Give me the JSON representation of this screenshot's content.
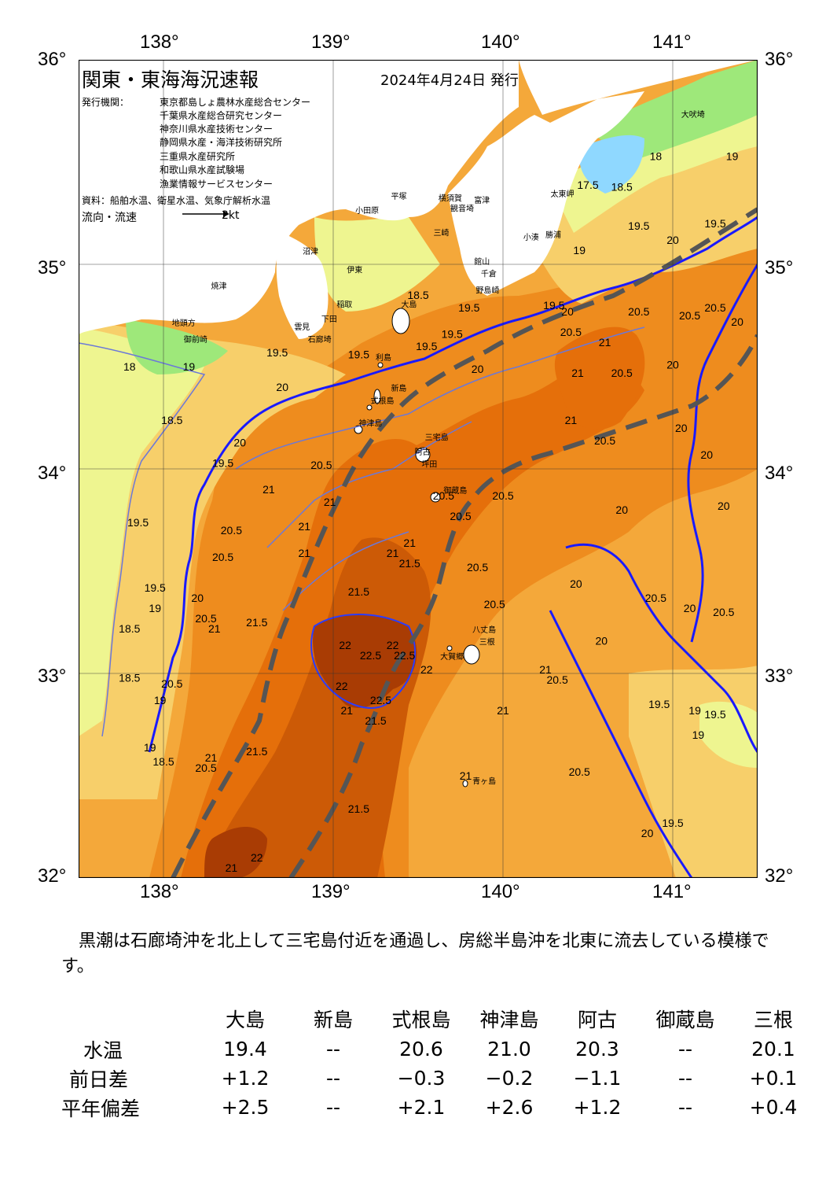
{
  "map": {
    "title": "関東・東海海況速報",
    "date": "2024年4月24日 発行",
    "publisher_label": "発行機関：",
    "publishers": [
      "東京都島しょ農林水産総合センター",
      "千葉県水産総合研究センター",
      "神奈川県水産技術センター",
      "静岡県水産・海洋技術研究所",
      "三重県水産研究所",
      "和歌山県水産試験場",
      "漁業情報サービスセンター"
    ],
    "source": "資料：船舶水温、衛星水温、気象庁解析水温",
    "flow_label": "流向・流速",
    "flow_unit": "2kt",
    "lon_ticks": [
      "138°",
      "139°",
      "140°",
      "141°"
    ],
    "lat_ticks": [
      "36°",
      "35°",
      "34°",
      "33°",
      "32°"
    ],
    "lon_range": [
      137.5,
      141.5
    ],
    "lat_range": [
      32,
      36
    ],
    "colors": {
      "t17": "#8fd8ff",
      "t18": "#9ee87a",
      "t19": "#eef590",
      "t19_5": "#f7cf6a",
      "t20": "#f4a83a",
      "t20_5": "#ee8c1e",
      "t21": "#e56f0a",
      "t21_5": "#cc5a06",
      "t22": "#a93c04",
      "land": "#ffffff",
      "isotherm_major": "#1a1aff",
      "isotherm_minor": "#6b78d8",
      "kuroshio_axis": "#555555"
    },
    "place_labels": [
      {
        "text": "大吠埼",
        "lon": 141.05,
        "lat": 35.72
      },
      {
        "text": "太東岬",
        "lon": 140.28,
        "lat": 35.33
      },
      {
        "text": "勝浦",
        "lon": 140.25,
        "lat": 35.13
      },
      {
        "text": "小湊",
        "lon": 140.12,
        "lat": 35.12
      },
      {
        "text": "富津",
        "lon": 139.83,
        "lat": 35.3
      },
      {
        "text": "館山",
        "lon": 139.83,
        "lat": 35.0
      },
      {
        "text": "千倉",
        "lon": 139.87,
        "lat": 34.94
      },
      {
        "text": "野島崎",
        "lon": 139.84,
        "lat": 34.86
      },
      {
        "text": "横須賀",
        "lon": 139.62,
        "lat": 35.31
      },
      {
        "text": "観音埼",
        "lon": 139.69,
        "lat": 35.26
      },
      {
        "text": "三崎",
        "lon": 139.59,
        "lat": 35.14
      },
      {
        "text": "平塚",
        "lon": 139.34,
        "lat": 35.32
      },
      {
        "text": "小田原",
        "lon": 139.13,
        "lat": 35.25
      },
      {
        "text": "大島",
        "lon": 139.4,
        "lat": 34.79
      },
      {
        "text": "伊東",
        "lon": 139.08,
        "lat": 34.96
      },
      {
        "text": "稲取",
        "lon": 139.02,
        "lat": 34.79
      },
      {
        "text": "下田",
        "lon": 138.93,
        "lat": 34.72
      },
      {
        "text": "石廊埼",
        "lon": 138.85,
        "lat": 34.62
      },
      {
        "text": "雲見",
        "lon": 138.77,
        "lat": 34.68
      },
      {
        "text": "沼津",
        "lon": 138.82,
        "lat": 35.05
      },
      {
        "text": "焼津",
        "lon": 138.28,
        "lat": 34.88
      },
      {
        "text": "御前崎",
        "lon": 138.12,
        "lat": 34.62
      },
      {
        "text": "地頭方",
        "lon": 138.05,
        "lat": 34.7
      },
      {
        "text": "利島",
        "lon": 139.25,
        "lat": 34.53
      },
      {
        "text": "新島",
        "lon": 139.34,
        "lat": 34.38
      },
      {
        "text": "式根島",
        "lon": 139.22,
        "lat": 34.32
      },
      {
        "text": "神津島",
        "lon": 139.15,
        "lat": 34.21
      },
      {
        "text": "三宅島",
        "lon": 139.54,
        "lat": 34.14
      },
      {
        "text": "阿古",
        "lon": 139.48,
        "lat": 34.07
      },
      {
        "text": "坪田",
        "lon": 139.52,
        "lat": 34.01
      },
      {
        "text": "御蔵島",
        "lon": 139.65,
        "lat": 33.88
      },
      {
        "text": "八丈島",
        "lon": 139.82,
        "lat": 33.2
      },
      {
        "text": "三根",
        "lon": 139.86,
        "lat": 33.14
      },
      {
        "text": "大賀郷",
        "lon": 139.63,
        "lat": 33.07
      },
      {
        "text": "青ヶ島",
        "lon": 139.82,
        "lat": 32.46
      }
    ],
    "contour_labels": [
      {
        "text": "18",
        "lon": 140.9,
        "lat": 35.51
      },
      {
        "text": "18.5",
        "lon": 140.7,
        "lat": 35.36
      },
      {
        "text": "19",
        "lon": 141.35,
        "lat": 35.51
      },
      {
        "text": "17.5",
        "lon": 140.5,
        "lat": 35.37
      },
      {
        "text": "19.5",
        "lon": 140.8,
        "lat": 35.17
      },
      {
        "text": "19",
        "lon": 140.45,
        "lat": 35.05
      },
      {
        "text": "20",
        "lon": 141.0,
        "lat": 35.1
      },
      {
        "text": "19.5",
        "lon": 141.25,
        "lat": 35.18
      },
      {
        "text": "20.5",
        "lon": 140.8,
        "lat": 34.75
      },
      {
        "text": "20.5",
        "lon": 141.1,
        "lat": 34.73
      },
      {
        "text": "20",
        "lon": 141.38,
        "lat": 34.7
      },
      {
        "text": "20.5",
        "lon": 141.25,
        "lat": 34.77
      },
      {
        "text": "20",
        "lon": 141.0,
        "lat": 34.49
      },
      {
        "text": "19.5",
        "lon": 140.3,
        "lat": 34.78
      },
      {
        "text": "20",
        "lon": 140.38,
        "lat": 34.75
      },
      {
        "text": "20.5",
        "lon": 140.4,
        "lat": 34.65
      },
      {
        "text": "21",
        "lon": 140.6,
        "lat": 34.6
      },
      {
        "text": "21",
        "lon": 140.44,
        "lat": 34.45
      },
      {
        "text": "20.5",
        "lon": 140.7,
        "lat": 34.45
      },
      {
        "text": "21",
        "lon": 140.4,
        "lat": 34.22
      },
      {
        "text": "20.5",
        "lon": 140.6,
        "lat": 34.12
      },
      {
        "text": "20",
        "lon": 141.05,
        "lat": 34.18
      },
      {
        "text": "20",
        "lon": 141.2,
        "lat": 34.05
      },
      {
        "text": "20",
        "lon": 141.3,
        "lat": 33.8
      },
      {
        "text": "20",
        "lon": 140.7,
        "lat": 33.78
      },
      {
        "text": "19.5",
        "lon": 139.8,
        "lat": 34.77
      },
      {
        "text": "19.5",
        "lon": 139.55,
        "lat": 34.58
      },
      {
        "text": "19.5",
        "lon": 139.7,
        "lat": 34.64
      },
      {
        "text": "20",
        "lon": 139.85,
        "lat": 34.47
      },
      {
        "text": "19.5",
        "lon": 139.15,
        "lat": 34.54
      },
      {
        "text": "20",
        "lon": 138.7,
        "lat": 34.38
      },
      {
        "text": "19.5",
        "lon": 138.67,
        "lat": 34.55
      },
      {
        "text": "18.5",
        "lon": 139.5,
        "lat": 34.83
      },
      {
        "text": "19",
        "lon": 138.15,
        "lat": 34.48
      },
      {
        "text": "18.5",
        "lon": 138.05,
        "lat": 34.22
      },
      {
        "text": "20",
        "lon": 138.45,
        "lat": 34.11
      },
      {
        "text": "19.5",
        "lon": 138.35,
        "lat": 34.01
      },
      {
        "text": "18",
        "lon": 137.8,
        "lat": 34.48
      },
      {
        "text": "19.5",
        "lon": 137.85,
        "lat": 33.72
      },
      {
        "text": "20.5",
        "lon": 138.93,
        "lat": 34.0
      },
      {
        "text": "21",
        "lon": 138.62,
        "lat": 33.88
      },
      {
        "text": "21",
        "lon": 138.98,
        "lat": 33.82
      },
      {
        "text": "21",
        "lon": 138.83,
        "lat": 33.7
      },
      {
        "text": "21",
        "lon": 138.83,
        "lat": 33.57
      },
      {
        "text": "20.5",
        "lon": 138.4,
        "lat": 33.68
      },
      {
        "text": "20.5",
        "lon": 138.35,
        "lat": 33.55
      },
      {
        "text": "20",
        "lon": 138.2,
        "lat": 33.35
      },
      {
        "text": "20.5",
        "lon": 138.25,
        "lat": 33.25
      },
      {
        "text": "21",
        "lon": 138.3,
        "lat": 33.2
      },
      {
        "text": "19.5",
        "lon": 137.95,
        "lat": 33.4
      },
      {
        "text": "19",
        "lon": 137.95,
        "lat": 33.3
      },
      {
        "text": "18.5",
        "lon": 137.8,
        "lat": 33.2
      },
      {
        "text": "18.5",
        "lon": 137.8,
        "lat": 32.96
      },
      {
        "text": "20.5",
        "lon": 138.05,
        "lat": 32.93
      },
      {
        "text": "19",
        "lon": 137.98,
        "lat": 32.85
      },
      {
        "text": "19",
        "lon": 137.92,
        "lat": 32.62
      },
      {
        "text": "18.5",
        "lon": 138.0,
        "lat": 32.55
      },
      {
        "text": "21",
        "lon": 138.28,
        "lat": 32.57
      },
      {
        "text": "20.5",
        "lon": 138.25,
        "lat": 32.52
      },
      {
        "text": "21.5",
        "lon": 138.55,
        "lat": 32.6
      },
      {
        "text": "21.5",
        "lon": 138.55,
        "lat": 33.23
      },
      {
        "text": "21.5",
        "lon": 139.15,
        "lat": 33.38
      },
      {
        "text": "21.5",
        "lon": 139.45,
        "lat": 33.52
      },
      {
        "text": "21",
        "lon": 139.45,
        "lat": 33.62
      },
      {
        "text": "21",
        "lon": 139.35,
        "lat": 33.57
      },
      {
        "text": "20.5",
        "lon": 139.75,
        "lat": 33.75
      },
      {
        "text": "20.5",
        "lon": 139.65,
        "lat": 33.85
      },
      {
        "text": "20.5",
        "lon": 140.0,
        "lat": 33.85
      },
      {
        "text": "20.5",
        "lon": 139.85,
        "lat": 33.5
      },
      {
        "text": "20.5",
        "lon": 139.95,
        "lat": 33.32
      },
      {
        "text": "20.5",
        "lon": 140.9,
        "lat": 33.35
      },
      {
        "text": "20.5",
        "lon": 141.3,
        "lat": 33.28
      },
      {
        "text": "20",
        "lon": 141.1,
        "lat": 33.3
      },
      {
        "text": "20",
        "lon": 140.43,
        "lat": 33.42
      },
      {
        "text": "20",
        "lon": 140.58,
        "lat": 33.14
      },
      {
        "text": "22",
        "lon": 139.07,
        "lat": 33.12
      },
      {
        "text": "22.5",
        "lon": 139.22,
        "lat": 33.07
      },
      {
        "text": "22.5",
        "lon": 139.42,
        "lat": 33.07
      },
      {
        "text": "22",
        "lon": 139.35,
        "lat": 33.12
      },
      {
        "text": "22",
        "lon": 139.55,
        "lat": 33.0
      },
      {
        "text": "22",
        "lon": 139.05,
        "lat": 32.92
      },
      {
        "text": "22.5",
        "lon": 139.28,
        "lat": 32.85
      },
      {
        "text": "21.5",
        "lon": 139.25,
        "lat": 32.75
      },
      {
        "text": "21",
        "lon": 139.08,
        "lat": 32.8
      },
      {
        "text": "21",
        "lon": 140.25,
        "lat": 33.0
      },
      {
        "text": "20.5",
        "lon": 140.32,
        "lat": 32.95
      },
      {
        "text": "21",
        "lon": 140.0,
        "lat": 32.8
      },
      {
        "text": "21",
        "lon": 139.78,
        "lat": 32.48
      },
      {
        "text": "20.5",
        "lon": 140.45,
        "lat": 32.5
      },
      {
        "text": "20",
        "lon": 140.85,
        "lat": 32.2
      },
      {
        "text": "19.5",
        "lon": 140.92,
        "lat": 32.83
      },
      {
        "text": "19",
        "lon": 141.13,
        "lat": 32.8
      },
      {
        "text": "19",
        "lon": 141.15,
        "lat": 32.68
      },
      {
        "text": "19.5",
        "lon": 141.25,
        "lat": 32.78
      },
      {
        "text": "19.5",
        "lon": 141.0,
        "lat": 32.25
      },
      {
        "text": "21.5",
        "lon": 139.15,
        "lat": 32.32
      },
      {
        "text": "22",
        "lon": 138.55,
        "lat": 32.08
      },
      {
        "text": "21",
        "lon": 138.4,
        "lat": 32.03
      }
    ]
  },
  "summary": {
    "text": "黒潮は石廊埼沖を北上して三宅島付近を通過し、房総半島沖を北東に流去している模様です。"
  },
  "observations": {
    "stations": [
      "大島",
      "新島",
      "式根島",
      "神津島",
      "阿古",
      "御蔵島",
      "三根"
    ],
    "rows": [
      {
        "label": "水温",
        "values": [
          "19.4",
          "--",
          "20.6",
          "21.0",
          "20.3",
          "--",
          "20.1"
        ]
      },
      {
        "label": "前日差",
        "values": [
          "+1.2",
          "--",
          "−0.3",
          "−0.2",
          "−1.1",
          "--",
          "+0.1"
        ]
      },
      {
        "label": "平年偏差",
        "values": [
          "+2.5",
          "--",
          "+2.1",
          "+2.6",
          "+1.2",
          "--",
          "+0.4"
        ]
      }
    ]
  }
}
